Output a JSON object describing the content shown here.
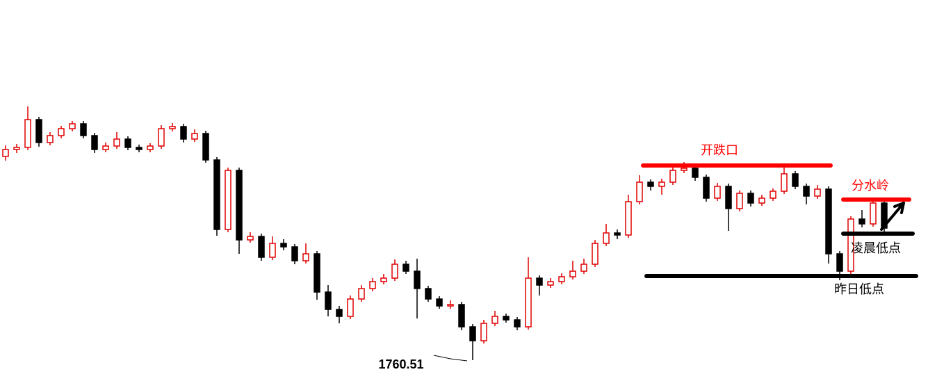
{
  "chart_data": {
    "type": "candlestick",
    "ylim": [
      1756.51,
      1812.31
    ],
    "up_color": "#e00000",
    "down_color": "#000000",
    "open": [
      1789.81,
      1790.81,
      1791.11,
      1795.11,
      1791.81,
      1792.81,
      1793.81,
      1794.51,
      1792.81,
      1790.81,
      1791.31,
      1792.31,
      1791.11,
      1790.81,
      1791.31,
      1793.81,
      1794.11,
      1792.31,
      1793.11,
      1789.31,
      1779.31,
      1787.81,
      1777.81,
      1778.31,
      1775.31,
      1777.31,
      1776.81,
      1774.81,
      1775.81,
      1770.31,
      1767.81,
      1766.81,
      1769.31,
      1770.81,
      1771.81,
      1772.31,
      1774.31,
      1773.31,
      1770.81,
      1769.31,
      1768.31,
      1768.51,
      1765.31,
      1763.31,
      1765.81,
      1766.81,
      1766.31,
      1765.31,
      1772.31,
      1771.31,
      1771.81,
      1772.51,
      1773.31,
      1774.31,
      1777.31,
      1778.81,
      1778.51,
      1783.31,
      1786.11,
      1785.51,
      1786.11,
      1787.81,
      1788.11,
      1786.81,
      1783.81,
      1785.51,
      1782.31,
      1784.51,
      1783.11,
      1783.81,
      1784.81,
      1787.31,
      1785.51,
      1784.11,
      1785.11,
      1775.81,
      1773.31,
      1780.81,
      1780.11,
      1783.11
    ],
    "high": [
      1791.41,
      1791.61,
      1797.01,
      1795.51,
      1793.31,
      1794.21,
      1794.91,
      1794.91,
      1793.21,
      1791.81,
      1793.31,
      1792.71,
      1791.51,
      1791.71,
      1794.31,
      1794.61,
      1794.51,
      1793.71,
      1793.51,
      1789.71,
      1788.21,
      1788.21,
      1778.91,
      1778.71,
      1778.31,
      1777.91,
      1777.21,
      1777.31,
      1776.21,
      1771.31,
      1768.31,
      1769.81,
      1771.31,
      1772.31,
      1772.91,
      1775.01,
      1774.81,
      1775.11,
      1771.21,
      1769.71,
      1769.11,
      1768.91,
      1765.71,
      1766.31,
      1767.61,
      1767.21,
      1766.71,
      1775.31,
      1772.71,
      1772.31,
      1773.01,
      1774.81,
      1775.11,
      1777.81,
      1780.11,
      1779.31,
      1784.31,
      1787.11,
      1786.51,
      1786.61,
      1788.21,
      1789.01,
      1788.51,
      1787.21,
      1786.01,
      1785.91,
      1784.91,
      1784.91,
      1784.31,
      1785.21,
      1788.41,
      1787.71,
      1785.91,
      1785.71,
      1785.51,
      1776.21,
      1781.21,
      1782.11,
      1783.61,
      1783.51
    ],
    "low": [
      1789.21,
      1790.31,
      1790.71,
      1791.21,
      1791.41,
      1792.41,
      1793.41,
      1792.41,
      1790.31,
      1790.41,
      1790.91,
      1790.71,
      1790.41,
      1790.41,
      1790.91,
      1793.41,
      1791.81,
      1791.91,
      1788.91,
      1778.41,
      1778.91,
      1775.81,
      1777.41,
      1774.81,
      1774.91,
      1776.31,
      1774.31,
      1774.41,
      1769.21,
      1766.81,
      1765.81,
      1766.41,
      1768.91,
      1770.41,
      1771.41,
      1771.91,
      1772.91,
      1766.51,
      1768.91,
      1767.91,
      1767.91,
      1764.81,
      1760.51,
      1762.91,
      1765.41,
      1765.91,
      1764.81,
      1764.91,
      1769.81,
      1770.91,
      1771.41,
      1772.11,
      1772.91,
      1773.91,
      1776.91,
      1777.91,
      1778.11,
      1782.91,
      1784.91,
      1784.31,
      1785.71,
      1787.41,
      1786.31,
      1783.31,
      1783.41,
      1779.11,
      1781.91,
      1782.61,
      1782.71,
      1783.41,
      1784.41,
      1785.11,
      1782.91,
      1783.71,
      1774.41,
      1772.01,
      1772.91,
      1779.61,
      1779.71,
      1778.91
    ],
    "close": [
      1790.81,
      1791.11,
      1795.11,
      1791.81,
      1792.81,
      1793.81,
      1794.51,
      1792.81,
      1790.81,
      1791.31,
      1792.31,
      1791.11,
      1790.81,
      1791.31,
      1793.81,
      1794.11,
      1792.31,
      1793.11,
      1789.31,
      1779.31,
      1787.81,
      1777.81,
      1778.31,
      1775.31,
      1777.31,
      1776.81,
      1774.81,
      1775.81,
      1770.31,
      1767.81,
      1766.81,
      1769.31,
      1770.81,
      1771.81,
      1772.31,
      1774.31,
      1773.31,
      1770.81,
      1769.31,
      1768.31,
      1768.51,
      1765.31,
      1763.31,
      1765.81,
      1766.81,
      1766.31,
      1765.31,
      1772.31,
      1771.31,
      1771.81,
      1772.51,
      1773.31,
      1774.31,
      1777.31,
      1778.81,
      1778.51,
      1783.31,
      1786.11,
      1785.51,
      1786.11,
      1787.81,
      1788.11,
      1786.81,
      1783.81,
      1785.51,
      1782.31,
      1784.51,
      1783.11,
      1783.81,
      1784.81,
      1787.31,
      1785.51,
      1784.11,
      1785.11,
      1775.81,
      1773.31,
      1780.81,
      1780.11,
      1783.11,
      1779.51
    ],
    "low_label": 1760.51,
    "levels": [
      {
        "text": "开跌口",
        "value": 1788.51,
        "color": "#ff0000"
      },
      {
        "text": "分水岭",
        "value": 1783.61,
        "color": "#ff0000"
      },
      {
        "text": "凌晨低点",
        "value": 1778.71,
        "color": "#000000"
      },
      {
        "text": "昨日低点",
        "value": 1772.61,
        "color": "#000000"
      }
    ]
  }
}
